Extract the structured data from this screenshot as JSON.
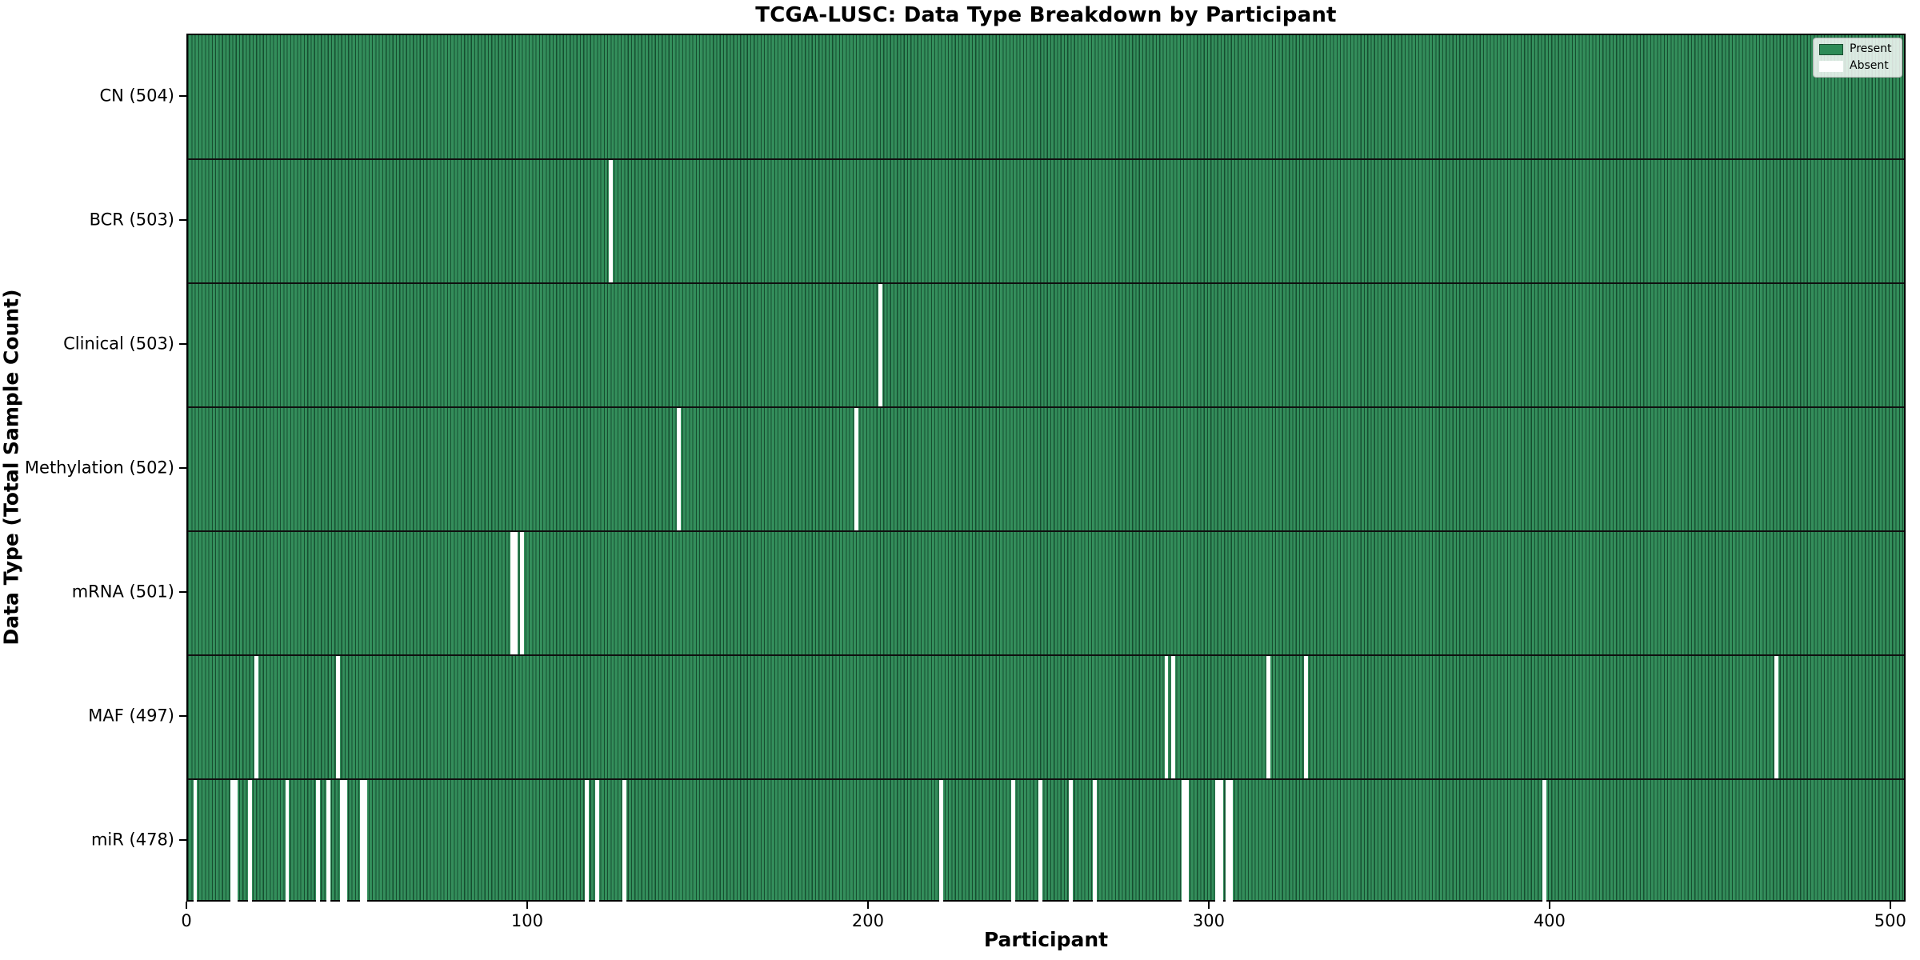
{
  "title": "TCGA-LUSC: Data Type Breakdown by Participant",
  "chart_data": {
    "type": "heatmap",
    "title": "TCGA-LUSC: Data Type Breakdown by Participant",
    "xlabel": "Participant",
    "ylabel": "Data Type (Total Sample Count)",
    "n_participants": 504,
    "xlim": [
      0,
      504.5
    ],
    "x_ticks": [
      0,
      100,
      200,
      300,
      400,
      500
    ],
    "grid": "row-separators-only",
    "legend": {
      "position": "upper right",
      "entries": [
        {
          "label": "Present",
          "color": "#2E8B57"
        },
        {
          "label": "Absent",
          "color": "#FFFFFF"
        }
      ]
    },
    "colors": {
      "present_fill": "#2E8B57",
      "bar_edge": "#14482C",
      "absent_fill": "#FFFFFF",
      "plot_border": "#000000"
    },
    "rows": [
      {
        "label": "CN (504)",
        "name": "CN",
        "present_count": 504,
        "absent_count": 0,
        "absent_participants": []
      },
      {
        "label": "BCR (503)",
        "name": "BCR",
        "present_count": 503,
        "absent_count": 1,
        "absent_participants": [
          124
        ]
      },
      {
        "label": "Clinical (503)",
        "name": "Clinical",
        "present_count": 503,
        "absent_count": 1,
        "absent_participants": [
          203
        ]
      },
      {
        "label": "Methylation (502)",
        "name": "Methylation",
        "present_count": 502,
        "absent_count": 2,
        "absent_participants": [
          144,
          196
        ]
      },
      {
        "label": "mRNA (501)",
        "name": "mRNA",
        "present_count": 501,
        "absent_count": 3,
        "absent_participants": [
          95,
          96,
          98
        ]
      },
      {
        "label": "MAF (497)",
        "name": "MAF",
        "present_count": 497,
        "absent_count": 7,
        "absent_participants": [
          20,
          44,
          287,
          289,
          317,
          328,
          466
        ]
      },
      {
        "label": "miR (478)",
        "name": "miR",
        "present_count": 478,
        "absent_count": 26,
        "absent_participants": [
          2,
          13,
          14,
          18,
          29,
          38,
          41,
          45,
          46,
          51,
          52,
          117,
          120,
          128,
          221,
          242,
          250,
          259,
          266,
          292,
          293,
          302,
          303,
          305,
          306,
          398
        ]
      }
    ]
  }
}
